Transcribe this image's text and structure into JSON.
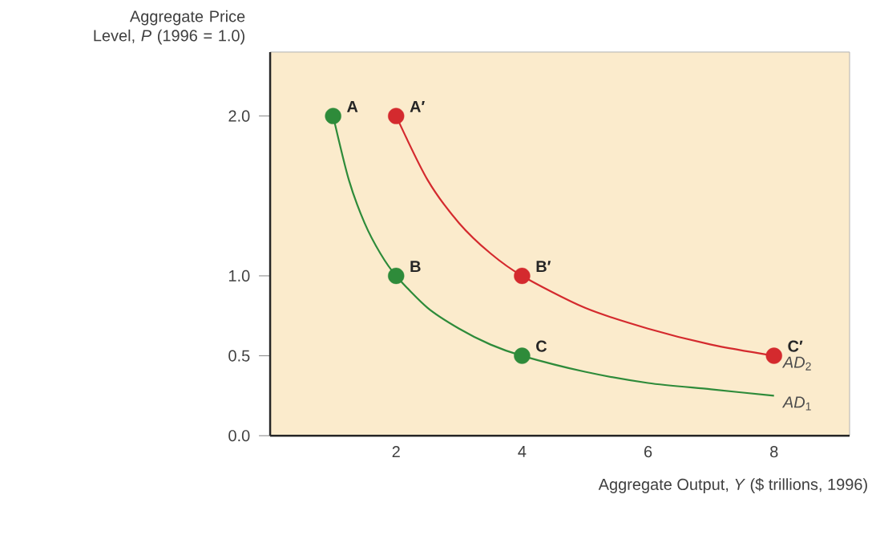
{
  "chart_data": {
    "type": "line",
    "xlabel": "Aggregate Output, *Y* ($ trillions, 1996)",
    "ylabel": "Aggregate Price Level, *P* (1996 = 1.0)",
    "xlim": [
      0,
      9.2
    ],
    "ylim": [
      0,
      2.4
    ],
    "xticks": [
      2,
      4,
      6,
      8
    ],
    "yticks": [
      {
        "value": 0,
        "label": "0.0"
      },
      {
        "value": 0.5,
        "label": "0.5"
      },
      {
        "value": 1,
        "label": "1.0"
      },
      {
        "value": 2,
        "label": "2.0"
      }
    ],
    "series": [
      {
        "name": "*AD*$_{1}$",
        "type": "line",
        "color": "#2e8b3a",
        "x": [
          1,
          1.25,
          1.5,
          1.75,
          2,
          2.5,
          3,
          3.5,
          4,
          5,
          6,
          7,
          8
        ],
        "values": [
          2,
          1.6,
          1.33,
          1.14,
          1,
          0.8,
          0.67,
          0.57,
          0.5,
          0.4,
          0.33,
          0.29,
          0.25
        ]
      },
      {
        "name": "*AD*$_{2}$",
        "type": "line",
        "color": "#d42a2e",
        "x": [
          2,
          2.5,
          3,
          3.5,
          4,
          5,
          6,
          7,
          8
        ],
        "values": [
          2,
          1.6,
          1.33,
          1.14,
          1,
          0.8,
          0.67,
          0.57,
          0.5
        ]
      },
      {
        "type": "scatter",
        "marker": "circle",
        "color": "#2e8b3a",
        "x": [
          1,
          2,
          4
        ],
        "values": [
          2,
          1,
          0.5
        ]
      },
      {
        "type": "scatter",
        "marker": "circle",
        "color": "#d42a2e",
        "x": [
          2,
          4,
          8
        ],
        "values": [
          2,
          1,
          0.5
        ]
      }
    ],
    "annotations": [
      {
        "text": "A",
        "x": 1,
        "y": 2
      },
      {
        "text": "A′",
        "x": 2,
        "y": 2
      },
      {
        "text": "B",
        "x": 2,
        "y": 1
      },
      {
        "text": "B′",
        "x": 4,
        "y": 1
      },
      {
        "text": "C",
        "x": 4,
        "y": 0.5
      },
      {
        "text": "C′",
        "x": 8,
        "y": 0.5
      }
    ]
  }
}
